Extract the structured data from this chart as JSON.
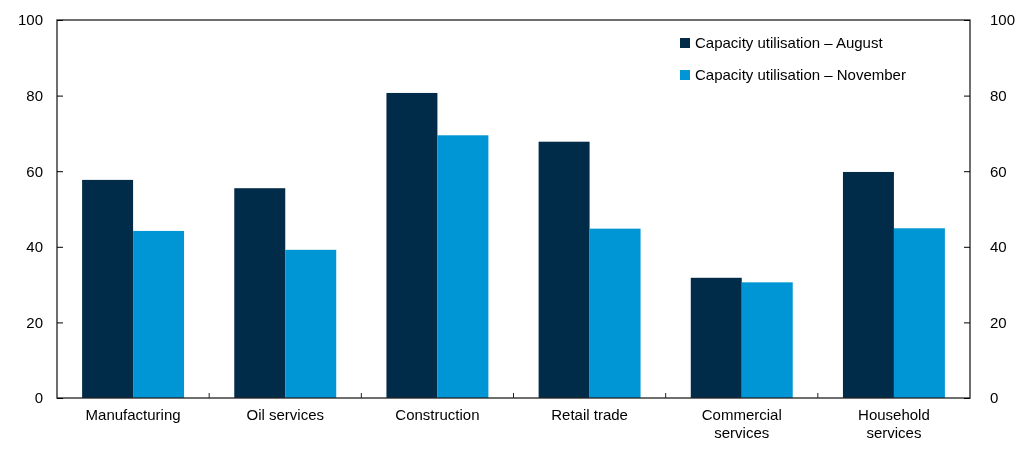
{
  "chart_data": {
    "type": "bar",
    "categories": [
      "Manufacturing",
      "Oil services",
      "Construction",
      "Retail trade",
      "Commercial\nservices",
      "Household\nservices"
    ],
    "series": [
      {
        "name": "Capacity utilisation – August",
        "color": "#002b49",
        "values": [
          57.7,
          55.5,
          80.7,
          67.8,
          31.8,
          59.8
        ]
      },
      {
        "name": "Capacity utilisation – November",
        "color": "#0095d4",
        "values": [
          44.2,
          39.2,
          69.5,
          44.8,
          30.6,
          44.9
        ]
      }
    ],
    "ylim": [
      0,
      100
    ],
    "yticks": [
      0,
      20,
      40,
      60,
      80,
      100
    ],
    "y2lim": [
      0,
      100
    ],
    "y2ticks": [
      0,
      20,
      40,
      60,
      80,
      100
    ],
    "grid": false,
    "legend": "top right"
  }
}
